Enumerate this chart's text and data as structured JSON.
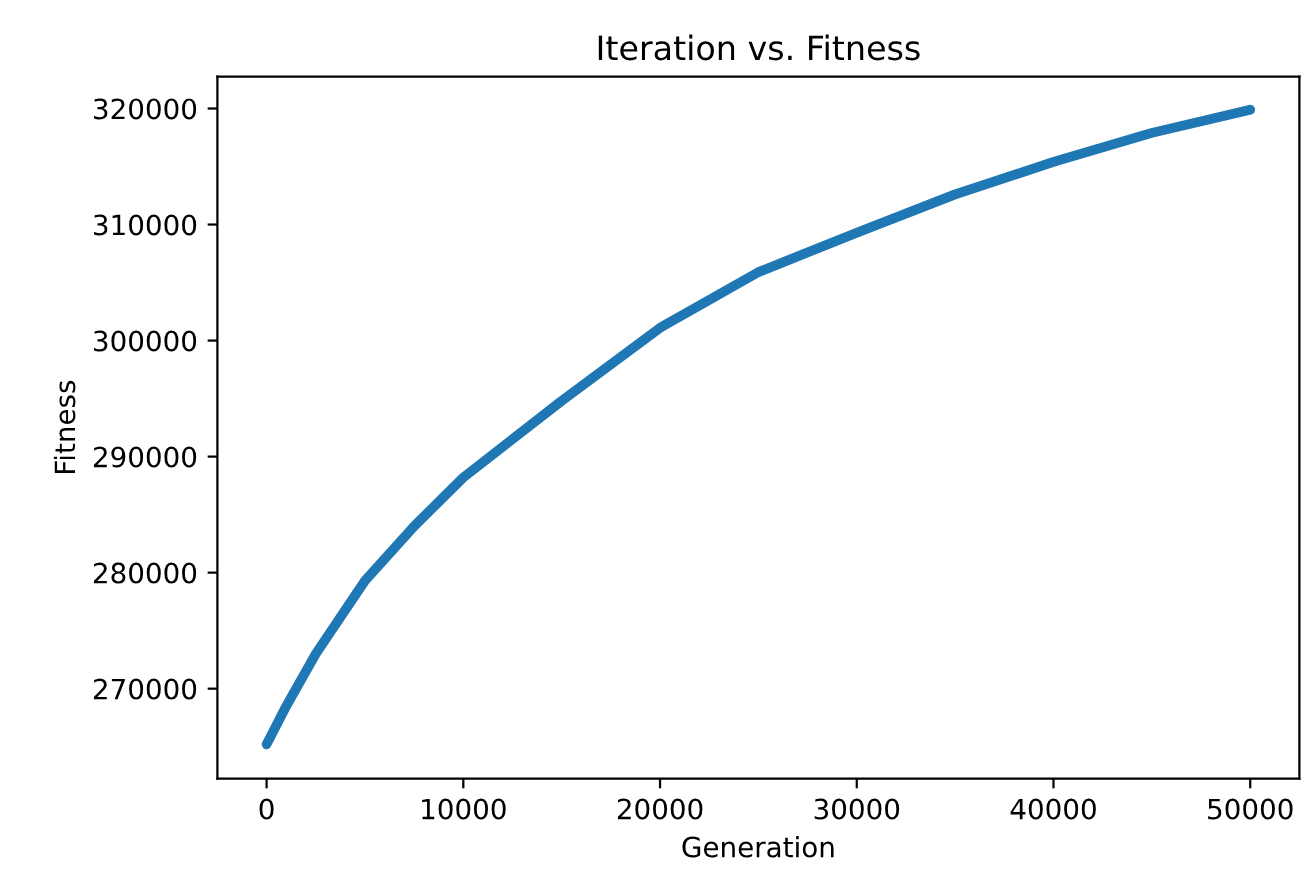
{
  "chart_data": {
    "type": "line",
    "title": "Iteration vs. Fitness",
    "xlabel": "Generation",
    "ylabel": "Fitness",
    "x": [
      0,
      1000,
      2500,
      5000,
      7500,
      10000,
      15000,
      20000,
      25000,
      30000,
      35000,
      40000,
      45000,
      50000
    ],
    "series": [
      {
        "color": "#1f77b4",
        "values": [
          265200,
          268500,
          273000,
          279300,
          284000,
          288200,
          294800,
          301100,
          305900,
          309300,
          312600,
          315400,
          317900,
          319900
        ]
      }
    ],
    "xlim": [
      -2500,
      52500
    ],
    "xticks": [
      0,
      10000,
      20000,
      30000,
      40000,
      50000
    ],
    "ylim": [
      262250,
      322750
    ],
    "yticks": [
      270000,
      280000,
      290000,
      300000,
      310000,
      320000
    ],
    "grid": false,
    "legend": false,
    "marker": "none",
    "line_style": "solid"
  }
}
